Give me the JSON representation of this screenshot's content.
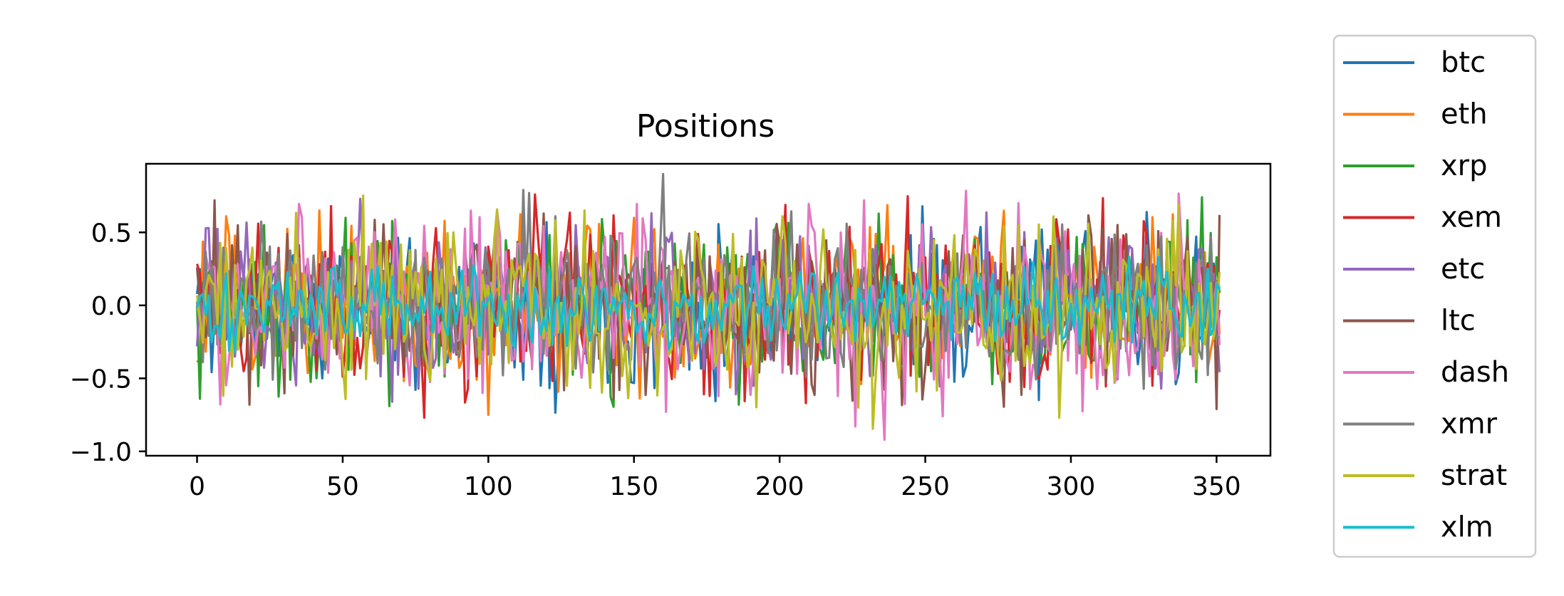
{
  "chart_data": {
    "type": "line",
    "title": "Positions",
    "xlabel": "",
    "ylabel": "",
    "xlim": [
      -17.5,
      368.5
    ],
    "ylim": [
      -1.03,
      0.97
    ],
    "x_ticks": [
      0,
      50,
      100,
      150,
      200,
      250,
      300,
      350
    ],
    "x_tick_labels": [
      "0",
      "50",
      "100",
      "150",
      "200",
      "250",
      "300",
      "350"
    ],
    "y_ticks": [
      -1.0,
      -0.5,
      0.0,
      0.5
    ],
    "y_tick_labels": [
      "−1.0",
      "−0.5",
      "0.0",
      "0.5"
    ],
    "grid": false,
    "legend_position": "outside-right",
    "x_count": 352,
    "series": [
      {
        "name": "btc",
        "color": "#1f77b4",
        "amplitude": 0.45,
        "seed": 11,
        "peaks": [
          [
            120,
            0.57
          ],
          [
            290,
            0.52
          ],
          [
            43,
            -0.5
          ]
        ]
      },
      {
        "name": "eth",
        "color": "#ff7f0e",
        "amplitude": 0.48,
        "seed": 23,
        "peaks": [
          [
            100,
            -0.75
          ],
          [
            42,
            0.65
          ],
          [
            150,
            0.6
          ]
        ]
      },
      {
        "name": "xrp",
        "color": "#2ca02c",
        "amplitude": 0.46,
        "seed": 37,
        "peaks": [
          [
            1,
            -0.64
          ],
          [
            345,
            0.74
          ],
          [
            51,
            0.6
          ]
        ]
      },
      {
        "name": "xem",
        "color": "#d62728",
        "amplitude": 0.5,
        "seed": 41,
        "peaks": [
          [
            78,
            -0.77
          ],
          [
            116,
            0.76
          ],
          [
            209,
            -0.67
          ],
          [
            176,
            -0.62
          ]
        ]
      },
      {
        "name": "etc",
        "color": "#9467bd",
        "amplitude": 0.44,
        "seed": 53,
        "peaks": [
          [
            56,
            0.73
          ],
          [
            130,
            0.55
          ]
        ]
      },
      {
        "name": "ltc",
        "color": "#8c564b",
        "amplitude": 0.47,
        "seed": 67,
        "peaks": [
          [
            6,
            0.72
          ],
          [
            18,
            -0.68
          ],
          [
            350,
            -0.71
          ]
        ]
      },
      {
        "name": "dash",
        "color": "#e377c2",
        "amplitude": 0.52,
        "seed": 71,
        "peaks": [
          [
            236,
            -0.92
          ],
          [
            229,
            0.72
          ],
          [
            282,
            0.7
          ],
          [
            98,
            -0.6
          ]
        ]
      },
      {
        "name": "xmr",
        "color": "#7f7f7f",
        "amplitude": 0.42,
        "seed": 83,
        "peaks": [
          [
            160,
            0.9
          ],
          [
            112,
            0.79
          ],
          [
            114,
            0.77
          ]
        ]
      },
      {
        "name": "strat",
        "color": "#bcbd22",
        "amplitude": 0.5,
        "seed": 97,
        "peaks": [
          [
            296,
            -0.77
          ],
          [
            227,
            -0.7
          ],
          [
            133,
            0.65
          ]
        ]
      },
      {
        "name": "xlm",
        "color": "#17becf",
        "amplitude": 0.24,
        "seed": 101,
        "peaks": []
      }
    ]
  }
}
